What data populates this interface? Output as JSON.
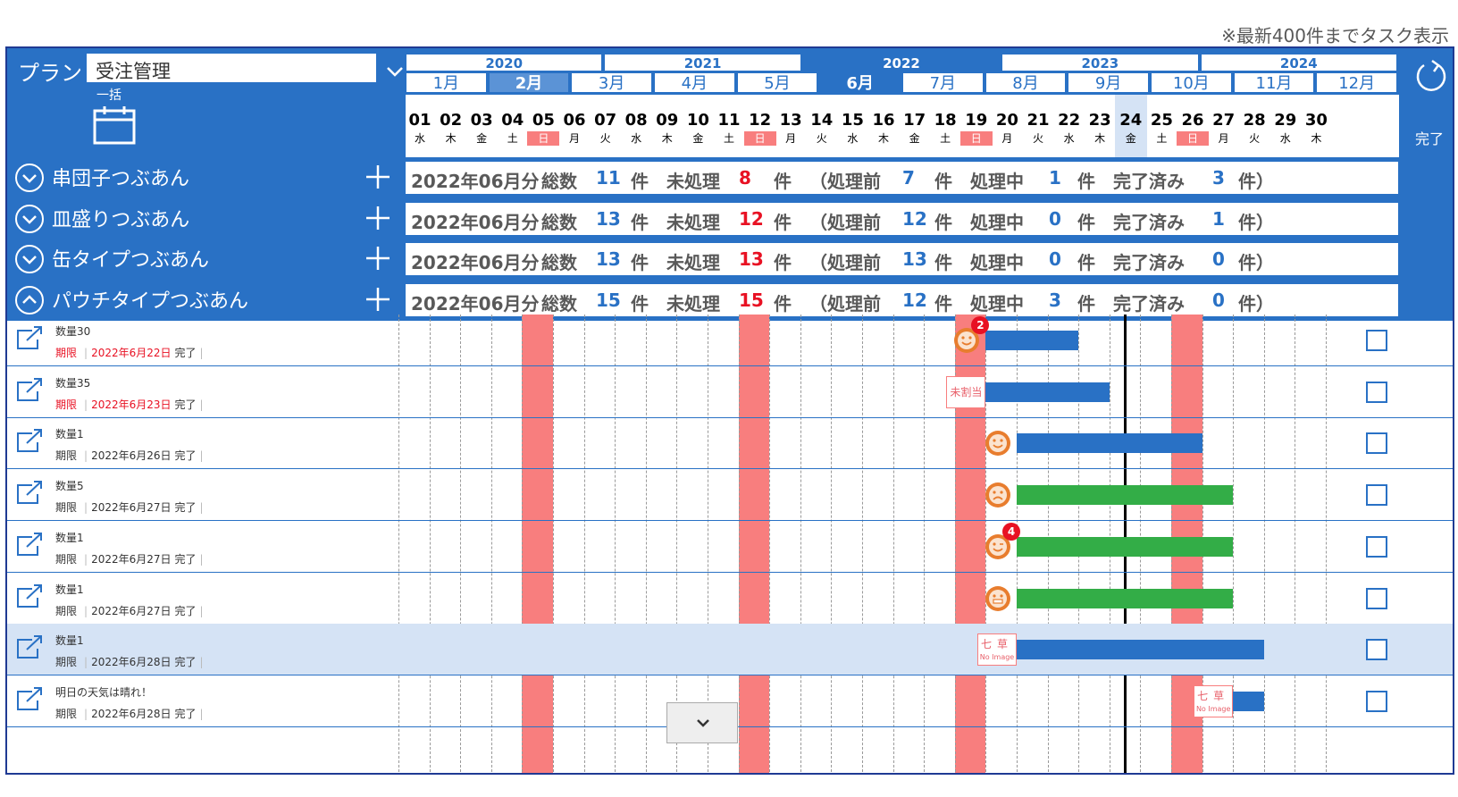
{
  "note": "※最新400件までタスク表示",
  "plan": {
    "label": "プラン",
    "selected": "受注管理",
    "bulk_label": "一括"
  },
  "colors": {
    "accent": "#2971c5",
    "sunday": "#f87e7e",
    "green": "#33ad47",
    "red": "#e81123"
  },
  "timeline": {
    "years": [
      "2020",
      "2021",
      "2022",
      "2023",
      "2024"
    ],
    "active_year": "2022",
    "months": [
      "1月",
      "2月",
      "3月",
      "4月",
      "5月",
      "6月",
      "7月",
      "8月",
      "9月",
      "10月",
      "11月",
      "12月"
    ],
    "active_month": "6月",
    "hover_month": "2月",
    "days": [
      {
        "d": "01",
        "w": "水"
      },
      {
        "d": "02",
        "w": "木"
      },
      {
        "d": "03",
        "w": "金"
      },
      {
        "d": "04",
        "w": "土"
      },
      {
        "d": "05",
        "w": "日"
      },
      {
        "d": "06",
        "w": "月"
      },
      {
        "d": "07",
        "w": "火"
      },
      {
        "d": "08",
        "w": "水"
      },
      {
        "d": "09",
        "w": "木"
      },
      {
        "d": "10",
        "w": "金"
      },
      {
        "d": "11",
        "w": "土"
      },
      {
        "d": "12",
        "w": "日"
      },
      {
        "d": "13",
        "w": "月"
      },
      {
        "d": "14",
        "w": "火"
      },
      {
        "d": "15",
        "w": "水"
      },
      {
        "d": "16",
        "w": "木"
      },
      {
        "d": "17",
        "w": "金"
      },
      {
        "d": "18",
        "w": "土"
      },
      {
        "d": "19",
        "w": "日"
      },
      {
        "d": "20",
        "w": "月"
      },
      {
        "d": "21",
        "w": "火"
      },
      {
        "d": "22",
        "w": "水"
      },
      {
        "d": "23",
        "w": "木"
      },
      {
        "d": "24",
        "w": "金"
      },
      {
        "d": "25",
        "w": "土"
      },
      {
        "d": "26",
        "w": "日"
      },
      {
        "d": "27",
        "w": "月"
      },
      {
        "d": "28",
        "w": "火"
      },
      {
        "d": "29",
        "w": "水"
      },
      {
        "d": "30",
        "w": "木"
      }
    ],
    "today": "24",
    "sundays": [
      "05",
      "12",
      "19",
      "26"
    ],
    "done_label": "完了"
  },
  "groups": [
    {
      "name": "串団子つぶあん",
      "expanded": false,
      "period": "2022年06月分",
      "total_label": "総数",
      "total": "11",
      "unit": "件",
      "unprocessed_label": "未処理",
      "unprocessed": "8",
      "before_label": "（処理前",
      "before": "7",
      "in_progress_label": "処理中",
      "in_progress": "1",
      "done_label": "完了済み",
      "done": "3",
      "close": "件）"
    },
    {
      "name": "皿盛りつぶあん",
      "expanded": false,
      "period": "2022年06月分",
      "total_label": "総数",
      "total": "13",
      "unit": "件",
      "unprocessed_label": "未処理",
      "unprocessed": "12",
      "before_label": "（処理前",
      "before": "12",
      "in_progress_label": "処理中",
      "in_progress": "0",
      "done_label": "完了済み",
      "done": "1",
      "close": "件）"
    },
    {
      "name": "缶タイプつぶあん",
      "expanded": false,
      "period": "2022年06月分",
      "total_label": "総数",
      "total": "13",
      "unit": "件",
      "unprocessed_label": "未処理",
      "unprocessed": "13",
      "before_label": "（処理前",
      "before": "13",
      "in_progress_label": "処理中",
      "in_progress": "0",
      "done_label": "完了済み",
      "done": "0",
      "close": "件）"
    },
    {
      "name": "パウチタイプつぶあん",
      "expanded": true,
      "period": "2022年06月分",
      "total_label": "総数",
      "total": "15",
      "unit": "件",
      "unprocessed_label": "未処理",
      "unprocessed": "15",
      "before_label": "（処理前",
      "before": "12",
      "in_progress_label": "処理中",
      "in_progress": "3",
      "done_label": "完了済み",
      "done": "0",
      "close": "件）"
    }
  ],
  "tasks": [
    {
      "title": "数量30",
      "due_label": "期限",
      "due": "2022年6月22日",
      "status": "完了",
      "overdue": true,
      "start": "19",
      "end": "22",
      "color": "blue",
      "assignee": "avatar",
      "face": "smile",
      "badge": "2"
    },
    {
      "title": "数量35",
      "due_label": "期限",
      "due": "2022年6月23日",
      "status": "完了",
      "overdue": true,
      "start": "19",
      "end": "23",
      "color": "blue",
      "assignee": "unassigned",
      "unassigned_label": "未割当"
    },
    {
      "title": "数量1",
      "due_label": "期限",
      "due": "2022年6月26日",
      "status": "完了",
      "overdue": false,
      "start": "20",
      "end": "26",
      "color": "blue",
      "assignee": "avatar",
      "face": "smile"
    },
    {
      "title": "数量5",
      "due_label": "期限",
      "due": "2022年6月27日",
      "status": "完了",
      "overdue": false,
      "start": "20",
      "end": "27",
      "color": "green",
      "assignee": "avatar",
      "face": "sad"
    },
    {
      "title": "数量1",
      "due_label": "期限",
      "due": "2022年6月27日",
      "status": "完了",
      "overdue": false,
      "start": "20",
      "end": "27",
      "color": "green",
      "assignee": "avatar",
      "face": "wink",
      "badge": "4"
    },
    {
      "title": "数量1",
      "due_label": "期限",
      "due": "2022年6月27日",
      "status": "完了",
      "overdue": false,
      "start": "20",
      "end": "27",
      "color": "green",
      "assignee": "avatar",
      "face": "grin"
    },
    {
      "title": "数量1",
      "due_label": "期限",
      "due": "2022年6月28日",
      "status": "完了",
      "overdue": false,
      "start": "20",
      "end": "28",
      "color": "blue",
      "assignee": "noimage",
      "name": "七草",
      "noimage_label": "No Image",
      "selected": true
    },
    {
      "title": "明日の天気は晴れ！",
      "due_label": "期限",
      "due": "2022年6月28日",
      "status": "完了",
      "overdue": false,
      "start": "27",
      "end": "28",
      "color": "blue",
      "assignee": "noimage",
      "name": "七草",
      "noimage_label": "No Image"
    }
  ]
}
